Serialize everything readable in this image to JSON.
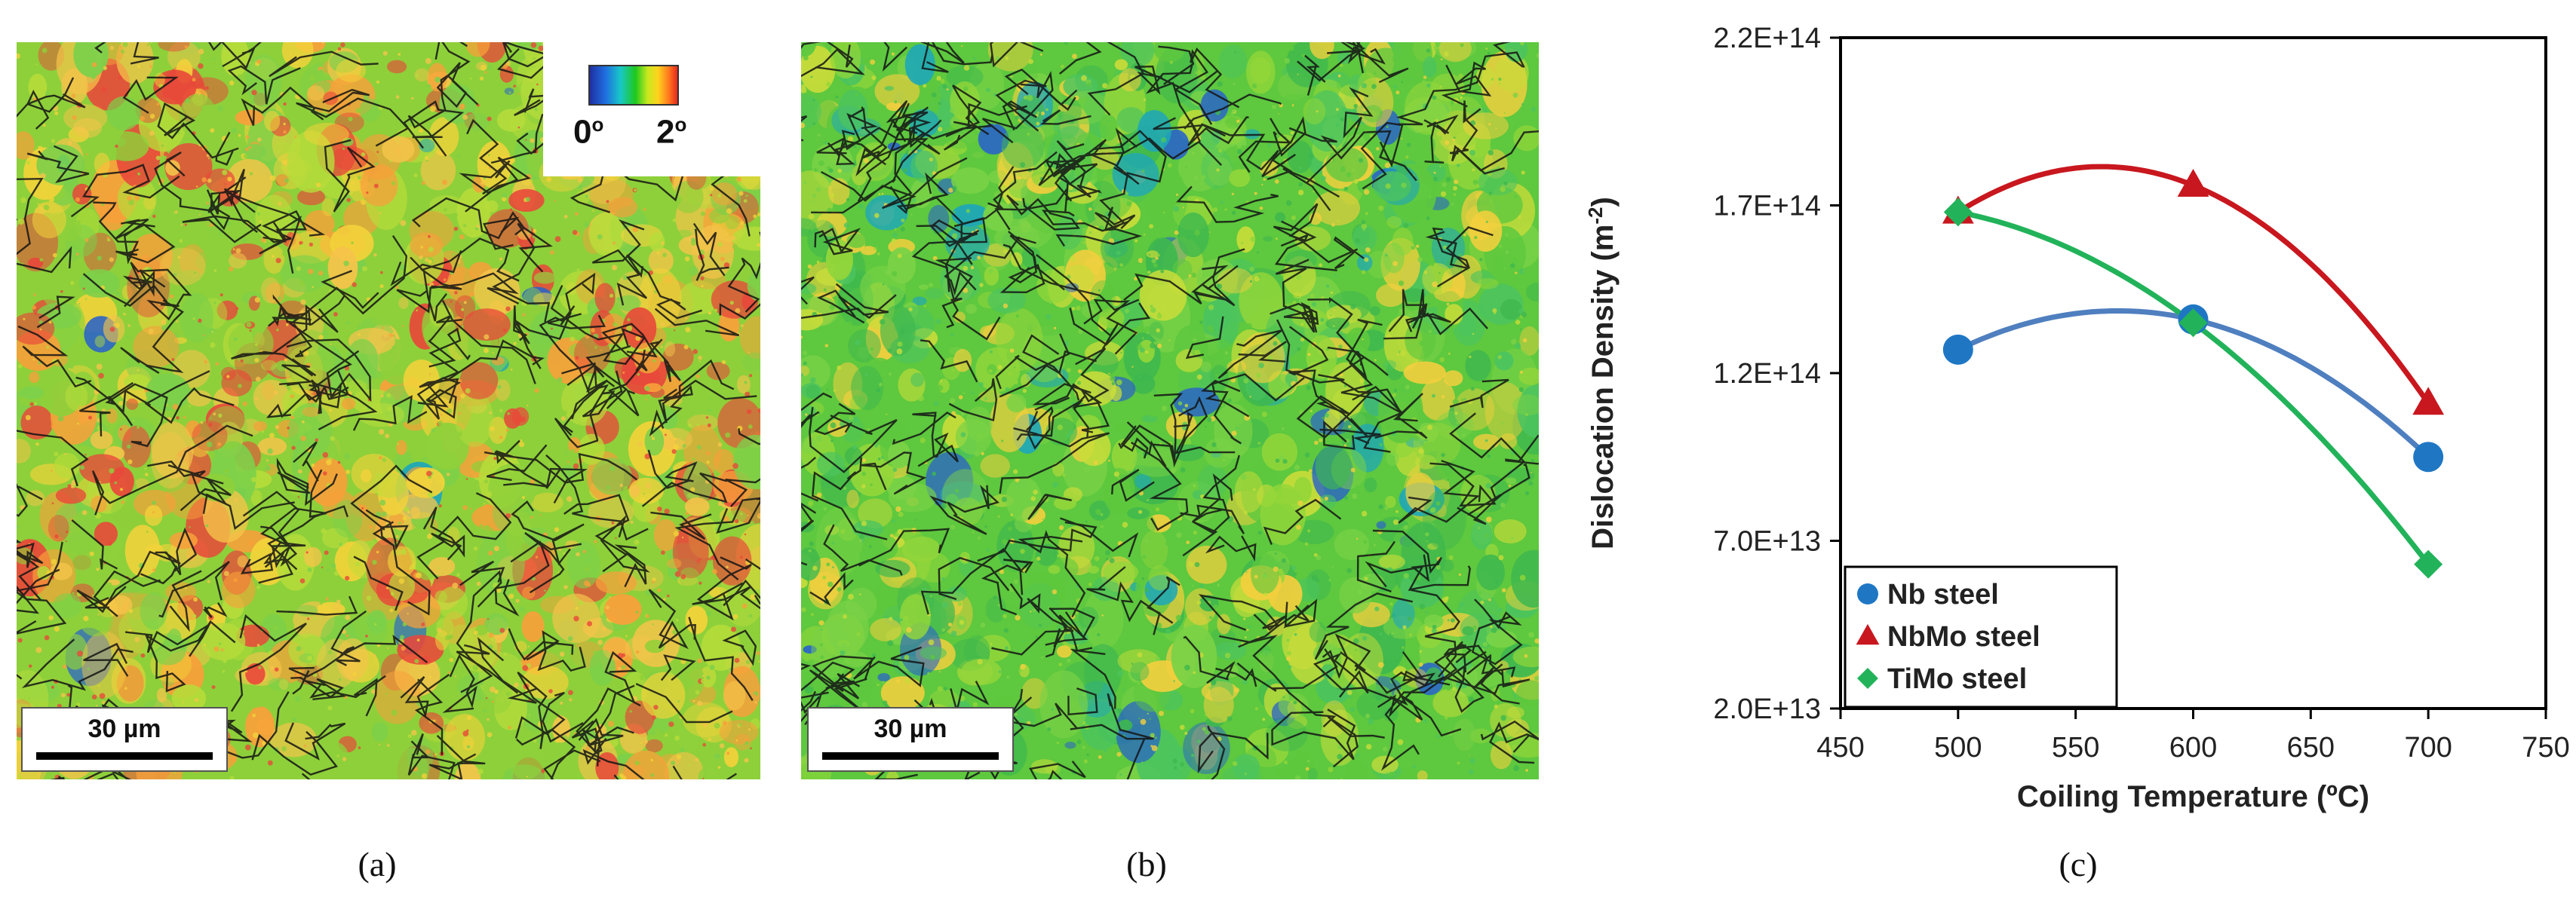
{
  "panel_a": {
    "scale_bar": "30 µm",
    "colorbar_min": "0",
    "colorbar_max": "2",
    "degree_symbol": "o",
    "caption": "(a)"
  },
  "panel_b": {
    "scale_bar": "30 µm",
    "caption": "(b)"
  },
  "panel_c": {
    "caption": "(c)"
  },
  "colors": {
    "nb": "#1f77c4",
    "nbmo": "#c8171e",
    "timo": "#22b35a",
    "nb_line": "#4f7fbf"
  },
  "chart_data": {
    "type": "scatter",
    "title": "",
    "xlabel": "Coiling Temperature (ºC)",
    "ylabel": "Dislocation Density (m",
    "ylabel_sup": "-2",
    "ylabel_close": ")",
    "xlim": [
      450,
      750
    ],
    "ylim": [
      20000000000000.0,
      220000000000000.0
    ],
    "x_ticks": [
      450,
      500,
      550,
      600,
      650,
      700,
      750
    ],
    "y_ticks": [
      20000000000000.0,
      70000000000000.0,
      120000000000000.0,
      170000000000000.0,
      220000000000000.0
    ],
    "y_tick_labels": [
      "2.0E+13",
      "7.0E+13",
      "1.2E+14",
      "1.7E+14",
      "2.2E+14"
    ],
    "x_tick_labels": [
      "450",
      "500",
      "550",
      "600",
      "650",
      "700",
      "750"
    ],
    "grid": false,
    "legend_position": "bottom-left",
    "series": [
      {
        "name": "Nb steel",
        "marker": "circle",
        "x": [
          500,
          600,
          700
        ],
        "y": [
          127000000000000.0,
          136000000000000.0,
          95000000000000.0
        ]
      },
      {
        "name": "NbMo steel",
        "marker": "triangle",
        "x": [
          500,
          600,
          700
        ],
        "y": [
          168000000000000.0,
          176000000000000.0,
          111000000000000.0
        ]
      },
      {
        "name": "TiMo steel",
        "marker": "diamond",
        "x": [
          500,
          600,
          700
        ],
        "y": [
          168000000000000.0,
          135000000000000.0,
          63000000000000.0
        ]
      }
    ]
  }
}
